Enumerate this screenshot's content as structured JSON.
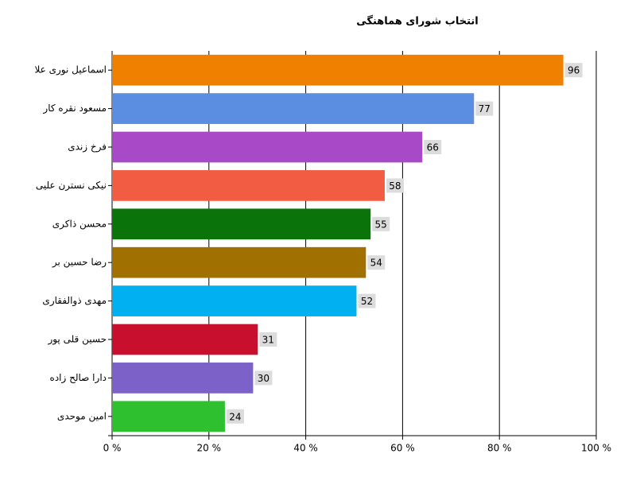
{
  "chart_data": {
    "type": "bar",
    "orientation": "horizontal",
    "title": "انتخاب شورای هماهنگی",
    "categories": [
      "اسماعیل نوری علا",
      "مسعود نقره کار",
      "فرخ زندی",
      "نیکی نسترن علیی",
      "محسن ذاکری",
      "رضا حسین بر",
      "مهدی ذوالفقاری",
      "حسین قلی پور",
      "دارا صالح زاده",
      "امین موحدی"
    ],
    "values": [
      96,
      77,
      66,
      58,
      55,
      54,
      52,
      31,
      30,
      24
    ],
    "colors": [
      "#f08000",
      "#5b8de0",
      "#a84ac8",
      "#f25c42",
      "#0a740a",
      "#a07000",
      "#00b0f0",
      "#c8102e",
      "#7c62c8",
      "#2ec02e"
    ],
    "xlim": [
      0,
      103
    ],
    "xticks": [
      {
        "value": 0,
        "label": "0 %"
      },
      {
        "value": 20.6,
        "label": "20 %"
      },
      {
        "value": 41.2,
        "label": "40 %"
      },
      {
        "value": 61.8,
        "label": "60 %"
      },
      {
        "value": 82.4,
        "label": "80 %"
      },
      {
        "value": 103,
        "label": "100 %"
      }
    ],
    "grid": true
  }
}
